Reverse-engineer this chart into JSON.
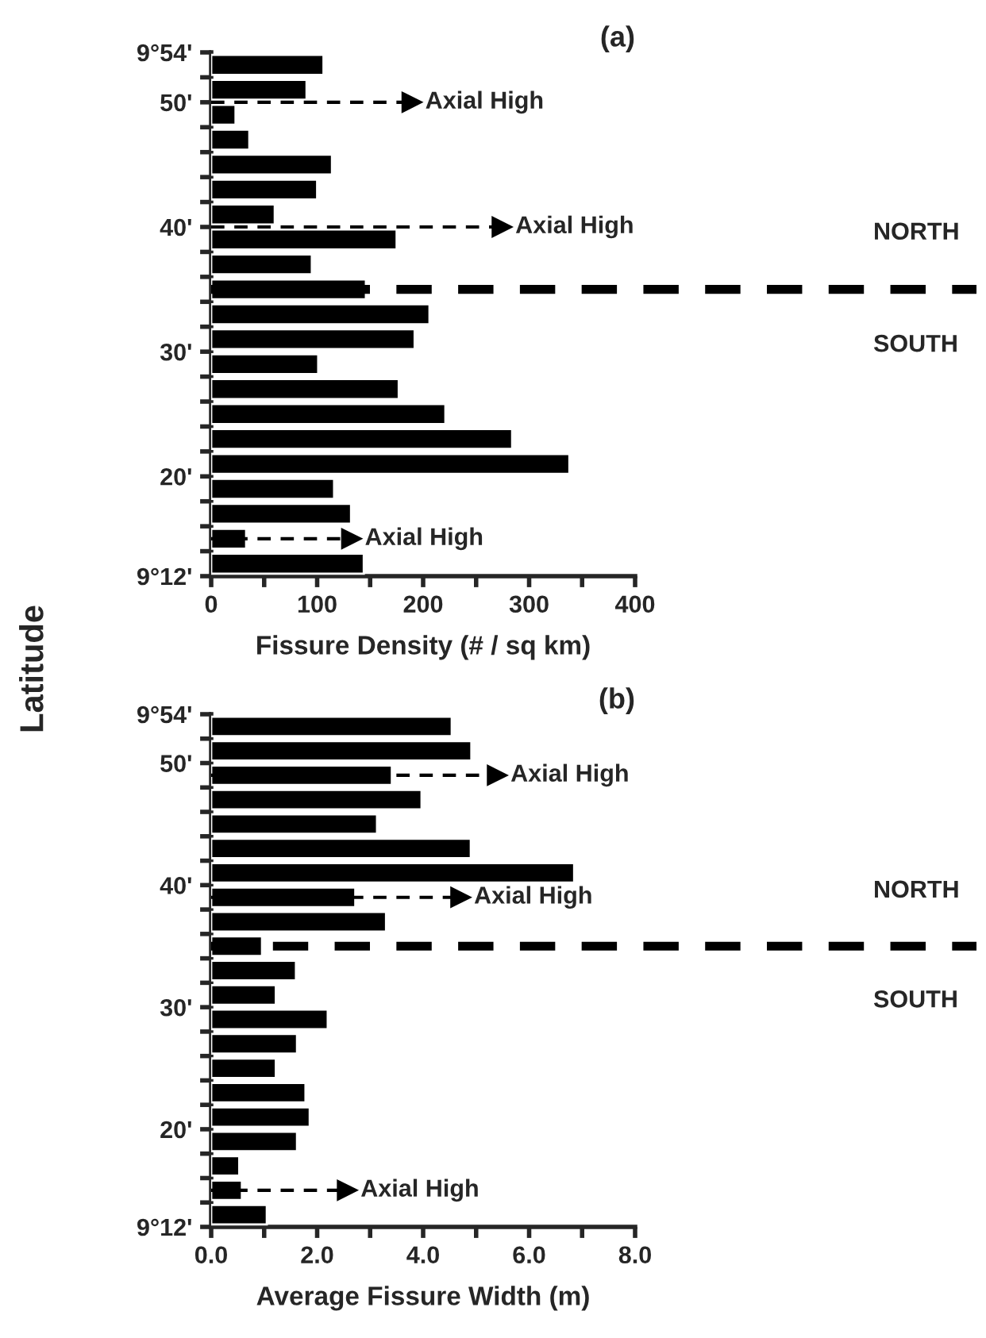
{
  "chart_data": [
    {
      "type": "bar",
      "orientation": "horizontal",
      "title": "(a)",
      "xlabel": "Fissure Density (# / sq km)",
      "ylabel": "Latitude",
      "x": [
        53,
        51,
        49,
        47,
        45,
        43,
        41,
        39,
        37,
        35,
        33,
        31,
        29,
        27,
        25,
        23,
        21,
        19,
        17,
        15,
        13
      ],
      "values": [
        106,
        90,
        23,
        36,
        114,
        100,
        60,
        175,
        95,
        146,
        206,
        192,
        101,
        177,
        221,
        284,
        338,
        116,
        132,
        33,
        144
      ],
      "color": "#000000",
      "xlim": [
        0,
        400
      ],
      "xticks": [
        0,
        {
          "value": 50,
          "label": null
        },
        100,
        {
          "value": 150,
          "label": null
        },
        200,
        {
          "value": 250,
          "label": null
        },
        300,
        {
          "value": 350,
          "label": null
        },
        400
      ],
      "ylim": [
        12,
        54
      ],
      "yticks": [
        {
          "value": 12,
          "label": "9°12'"
        },
        {
          "value": 14,
          "label": null
        },
        {
          "value": 16,
          "label": null
        },
        {
          "value": 18,
          "label": null
        },
        {
          "value": 20,
          "label": "20'"
        },
        {
          "value": 22,
          "label": null
        },
        {
          "value": 24,
          "label": null
        },
        {
          "value": 26,
          "label": null
        },
        {
          "value": 28,
          "label": null
        },
        {
          "value": 30,
          "label": "30'"
        },
        {
          "value": 32,
          "label": null
        },
        {
          "value": 34,
          "label": null
        },
        {
          "value": 36,
          "label": null
        },
        {
          "value": 38,
          "label": null
        },
        {
          "value": 40,
          "label": "40'"
        },
        {
          "value": 42,
          "label": null
        },
        {
          "value": 44,
          "label": null
        },
        {
          "value": 46,
          "label": null
        },
        {
          "value": 48,
          "label": null
        },
        {
          "value": 50,
          "label": "50'"
        },
        {
          "value": 52,
          "label": null
        },
        {
          "value": 54,
          "label": "9°54'"
        }
      ],
      "ref_lines": [
        {
          "axis": "y",
          "value": 35,
          "line_style": "dashed"
        },
        {
          "axis": "y",
          "value": 50,
          "label": "Axial High"
        },
        {
          "axis": "y",
          "value": 40,
          "label": "Axial High"
        },
        {
          "axis": "y",
          "value": 15,
          "label": "Axial High"
        }
      ],
      "annotations": [
        "NORTH",
        "SOUTH"
      ]
    },
    {
      "type": "bar",
      "orientation": "horizontal",
      "title": "(b)",
      "xlabel": "Average Fissure Width (m)",
      "x": [
        53,
        51,
        49,
        47,
        45,
        43,
        41,
        39,
        37,
        35,
        33,
        31,
        29,
        27,
        25,
        23,
        21,
        19,
        17,
        15,
        13
      ],
      "values": [
        4.54,
        4.91,
        3.41,
        3.97,
        3.13,
        4.9,
        6.85,
        2.72,
        3.3,
        0.96,
        1.6,
        1.22,
        2.2,
        1.62,
        1.22,
        1.78,
        1.86,
        1.62,
        0.53,
        0.58,
        1.05
      ],
      "color": "#000000",
      "xlim": [
        0,
        8
      ],
      "xticks": [
        {
          "value": 0,
          "label": "0.0"
        },
        {
          "value": 1,
          "label": null
        },
        {
          "value": 2,
          "label": "2.0"
        },
        {
          "value": 3,
          "label": null
        },
        {
          "value": 4,
          "label": "4.0"
        },
        {
          "value": 5,
          "label": null
        },
        {
          "value": 6,
          "label": "6.0"
        },
        {
          "value": 7,
          "label": null
        },
        {
          "value": 8,
          "label": "8.0"
        }
      ],
      "ylim": [
        12,
        54
      ],
      "yticks": [
        {
          "value": 12,
          "label": "9°12'"
        },
        {
          "value": 14,
          "label": null
        },
        {
          "value": 16,
          "label": null
        },
        {
          "value": 18,
          "label": null
        },
        {
          "value": 20,
          "label": "20'"
        },
        {
          "value": 22,
          "label": null
        },
        {
          "value": 24,
          "label": null
        },
        {
          "value": 26,
          "label": null
        },
        {
          "value": 28,
          "label": null
        },
        {
          "value": 30,
          "label": "30'"
        },
        {
          "value": 32,
          "label": null
        },
        {
          "value": 34,
          "label": null
        },
        {
          "value": 36,
          "label": null
        },
        {
          "value": 38,
          "label": null
        },
        {
          "value": 40,
          "label": "40'"
        },
        {
          "value": 42,
          "label": null
        },
        {
          "value": 44,
          "label": null
        },
        {
          "value": 46,
          "label": null
        },
        {
          "value": 48,
          "label": null
        },
        {
          "value": 50,
          "label": "50'"
        },
        {
          "value": 52,
          "label": null
        },
        {
          "value": 54,
          "label": "9°54'"
        }
      ],
      "ref_lines": [
        {
          "axis": "y",
          "value": 35,
          "line_style": "dashed"
        },
        {
          "axis": "y",
          "value": 49,
          "label": "Axial High"
        },
        {
          "axis": "y",
          "value": 39,
          "label": "Axial High"
        },
        {
          "axis": "y",
          "value": 15,
          "label": "Axial High"
        }
      ],
      "annotations": [
        "NORTH",
        "SOUTH"
      ]
    }
  ]
}
